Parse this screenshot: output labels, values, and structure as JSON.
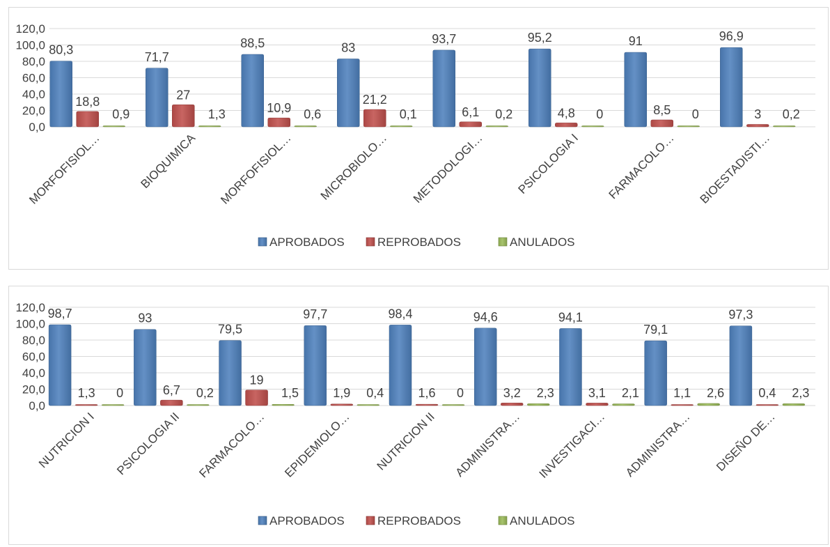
{
  "colors": {
    "aprobados": "#4F81BD",
    "reprobados": "#C0504D",
    "anulados": "#9BBB59",
    "grid": "#d9d9d9",
    "text": "#404040"
  },
  "chart_data": [
    {
      "type": "bar",
      "categories": [
        "MORFOFISIOL…",
        "BIOQUIMICA",
        "MORFOFISIOL…",
        "MICROBIOLO…",
        "METODOLOGI…",
        "PSICOLOGIA I",
        "FARMACOLO…",
        "BIOESTADISTI…"
      ],
      "series": [
        {
          "name": "APROBADOS",
          "values": [
            80.3,
            71.7,
            88.5,
            83,
            93.7,
            95.2,
            91,
            96.9
          ],
          "labels": [
            "80,3",
            "71,7",
            "88,5",
            "83",
            "93,7",
            "95,2",
            "91",
            "96,9"
          ]
        },
        {
          "name": "REPROBADOS",
          "values": [
            18.8,
            27,
            10.9,
            21.2,
            6.1,
            4.8,
            8.5,
            3
          ],
          "labels": [
            "18,8",
            "27",
            "10,9",
            "21,2",
            "6,1",
            "4,8",
            "8,5",
            "3"
          ]
        },
        {
          "name": "ANULADOS",
          "values": [
            0.9,
            1.3,
            0.6,
            0.1,
            0.2,
            0,
            0,
            0.2
          ],
          "labels": [
            "0,9",
            "1,3",
            "0,6",
            "0,1",
            "0,2",
            "0",
            "0",
            "0,2"
          ]
        }
      ],
      "ylim": [
        0,
        120
      ],
      "yticks": [
        "0,0",
        "20,0",
        "40,0",
        "60,0",
        "80,0",
        "100,0",
        "120,0"
      ],
      "grid": true,
      "legend": "bottom"
    },
    {
      "type": "bar",
      "categories": [
        "NUTRICION I",
        "PSICOLOGIA II",
        "FARMACOLO…",
        "EPIDEMIOLO…",
        "NUTRICION II",
        "ADMINISTRA…",
        "INVESTIGACI…",
        "ADMINISTRA…",
        "DISEÑO DE…"
      ],
      "series": [
        {
          "name": "APROBADOS",
          "values": [
            98.7,
            93,
            79.5,
            97.7,
            98.4,
            94.6,
            94.1,
            79.1,
            97.3
          ],
          "labels": [
            "98,7",
            "93",
            "79,5",
            "97,7",
            "98,4",
            "94,6",
            "94,1",
            "79,1",
            "97,3"
          ]
        },
        {
          "name": "REPROBADOS",
          "values": [
            1.3,
            6.7,
            19,
            1.9,
            1.6,
            3.2,
            3.1,
            1.1,
            0.4
          ],
          "labels": [
            "1,3",
            "6,7",
            "19",
            "1,9",
            "1,6",
            "3,2",
            "3,1",
            "1,1",
            "0,4"
          ]
        },
        {
          "name": "ANULADOS",
          "values": [
            0,
            0.2,
            1.5,
            0.4,
            0,
            2.3,
            2.1,
            2.6,
            2.3
          ],
          "labels": [
            "0",
            "0,2",
            "1,5",
            "0,4",
            "0",
            "2,3",
            "2,1",
            "2,6",
            "2,3"
          ]
        }
      ],
      "ylim": [
        0,
        120
      ],
      "yticks": [
        "0,0",
        "20,0",
        "40,0",
        "60,0",
        "80,0",
        "100,0",
        "120,0"
      ],
      "grid": true,
      "legend": "bottom"
    }
  ]
}
